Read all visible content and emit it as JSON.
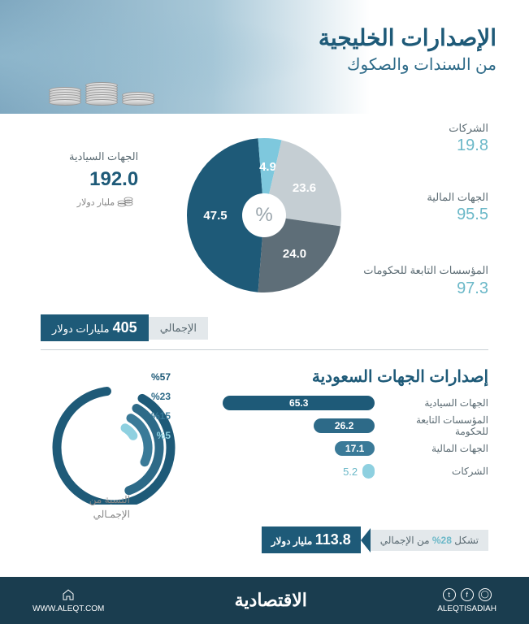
{
  "header": {
    "title": "الإصدارات الخليجية",
    "subtitle": "من السندات والصكوك"
  },
  "pie": {
    "center_symbol": "%",
    "slices": [
      {
        "key": "sovereign",
        "label_ar": "الجهات السيادية",
        "pct": 47.5,
        "value": "192.0",
        "color": "#1e5a78"
      },
      {
        "key": "corporate",
        "label_ar": "الشركات",
        "pct": 4.9,
        "value": "19.8",
        "color": "#7ec8dd"
      },
      {
        "key": "financial",
        "label_ar": "الجهات المالية",
        "pct": 23.6,
        "value": "95.5",
        "color": "#c5ced3"
      },
      {
        "key": "gov_inst",
        "label_ar": "المؤسسات التابعة للحكومات",
        "pct": 24.0,
        "value": "97.3",
        "color": "#5e6e78"
      }
    ],
    "value_unit": "مليار دولار",
    "total_label": "الإجمالي",
    "total_value": "405",
    "total_unit": "مليارات دولار"
  },
  "saudi": {
    "title": "إصدارات الجهات السعودية",
    "bars": [
      {
        "label": "الجهات السيادية",
        "value": 65.3,
        "pct": 57,
        "color": "#1e5a78"
      },
      {
        "label": "المؤسسات التابعة للحكومة",
        "value": 26.2,
        "pct": 23,
        "color": "#2d6a88"
      },
      {
        "label": "الجهات المالية",
        "value": 17.1,
        "pct": 15,
        "color": "#3a7a98"
      },
      {
        "label": "الشركات",
        "value": 5.2,
        "pct": 5,
        "color": "#8ed0e0"
      }
    ],
    "max_value": 70,
    "polar_caption1": "النسبة من",
    "polar_caption2": "الإجمـالي",
    "total_value": "113.8",
    "total_unit": "مليار دولار",
    "total_middle_prefix": "تشكل",
    "total_pct": "28%",
    "total_suffix": "من الإجمالي"
  },
  "footer": {
    "brand": "الاقتصادية",
    "handle": "ALEQTISADIAH",
    "url": "WWW.ALEQT.COM"
  },
  "colors": {
    "primary": "#1e5a78",
    "accent": "#6bb8c8",
    "gray": "#5a6a72",
    "light_gray": "#c5ced3"
  }
}
